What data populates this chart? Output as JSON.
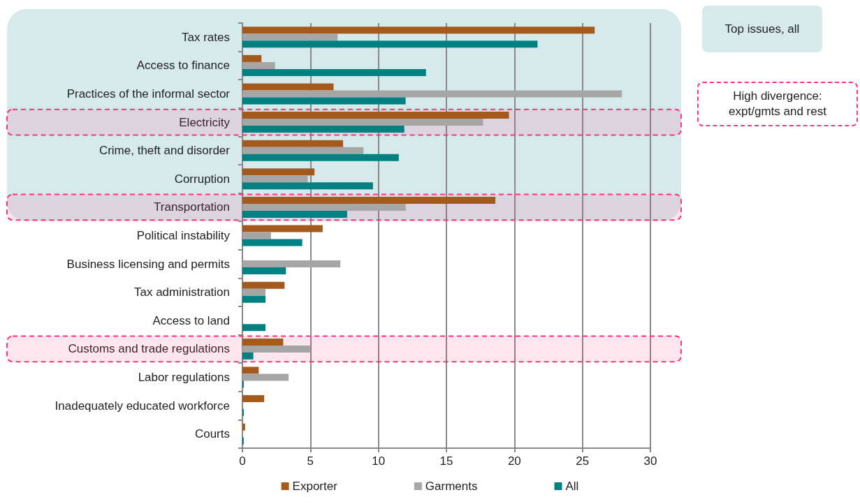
{
  "chart_data": {
    "type": "bar",
    "orientation": "horizontal",
    "categories": [
      "Tax rates",
      "Access to finance",
      "Practices of the informal sector",
      "Electricity",
      "Crime, theft and disorder",
      "Corruption",
      "Transportation",
      "Political instability",
      "Business licensing and permits",
      "Tax administration",
      "Access to land",
      "Customs and trade regulations",
      "Labor regulations",
      "Inadequately educated workforce",
      "Courts"
    ],
    "series": [
      {
        "name": "Exporter",
        "color": "#a35a1c",
        "values": [
          25.9,
          1.4,
          6.7,
          19.6,
          7.4,
          5.3,
          18.6,
          5.9,
          0,
          3.1,
          0,
          3.0,
          1.2,
          1.6,
          0.2
        ]
      },
      {
        "name": "Garments",
        "color": "#a6a6a6",
        "values": [
          7.0,
          2.4,
          27.9,
          17.7,
          8.9,
          4.8,
          12.0,
          2.1,
          7.2,
          1.7,
          0,
          5.0,
          3.4,
          0,
          0
        ]
      },
      {
        "name": "All",
        "color": "#008080",
        "values": [
          21.7,
          13.5,
          12.0,
          11.9,
          11.5,
          9.6,
          7.7,
          4.4,
          3.2,
          1.7,
          1.7,
          0.8,
          0.1,
          0.1,
          0.1
        ]
      }
    ],
    "xlim": [
      0,
      30
    ],
    "xticks": [
      0,
      5,
      10,
      15,
      20,
      25,
      30
    ],
    "grid": "x",
    "legend": "bottom",
    "bands": [
      {
        "axis": "y",
        "from": "Tax rates",
        "to": "Transportation",
        "color": "#d6eaec"
      },
      {
        "axis": "y",
        "from": "Electricity",
        "to": "Electricity",
        "color": "#ff3377"
      },
      {
        "axis": "y",
        "from": "Transportation",
        "to": "Transportation",
        "color": "#ff3377"
      },
      {
        "axis": "y",
        "from": "Customs and trade regulations",
        "to": "Customs and trade regulations",
        "color": "#ff3377"
      }
    ],
    "annotations": [
      "Top issues, all",
      "High divergence: expt/gmts and rest"
    ]
  }
}
